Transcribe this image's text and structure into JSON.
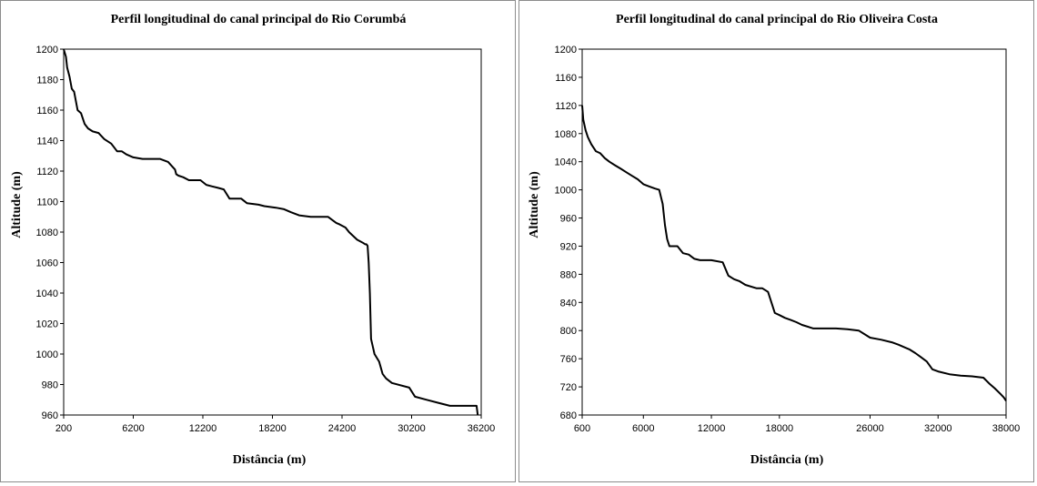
{
  "chart_data": [
    {
      "type": "line",
      "title": "Perfil longitudinal  do canal principal  do Rio Corumbá",
      "xlabel": "Distância (m)",
      "ylabel": "Altitude  (m)",
      "xlim": [
        200,
        36200
      ],
      "ylim": [
        960,
        1200
      ],
      "xticks": [
        200,
        6200,
        12200,
        18200,
        24200,
        30200,
        36200
      ],
      "yticks": [
        960,
        980,
        1000,
        1020,
        1040,
        1060,
        1080,
        1100,
        1120,
        1140,
        1160,
        1180,
        1200
      ],
      "grid": false,
      "x": [
        200,
        400,
        500,
        700,
        900,
        1100,
        1400,
        1700,
        2000,
        2300,
        2700,
        3200,
        3700,
        4300,
        4800,
        5200,
        5600,
        6200,
        7000,
        7800,
        8500,
        9200,
        9800,
        9900,
        10100,
        10500,
        11000,
        12000,
        12500,
        13000,
        13500,
        14000,
        14500,
        15500,
        16000,
        17000,
        17500,
        18500,
        19200,
        19800,
        20500,
        21500,
        22500,
        23000,
        23700,
        24000,
        24500,
        24800,
        25500,
        26000,
        26200,
        26300,
        26400,
        26500,
        26600,
        26700,
        27000,
        27400,
        27700,
        28000,
        28500,
        30000,
        30500,
        31500,
        32500,
        33500,
        35800,
        35900
      ],
      "y": [
        1200,
        1195,
        1188,
        1182,
        1174,
        1172,
        1160,
        1158,
        1151,
        1148,
        1146,
        1145,
        1141,
        1138,
        1133,
        1133,
        1131,
        1129,
        1128,
        1128,
        1128,
        1126,
        1121,
        1118,
        1117,
        1116,
        1114,
        1114,
        1111,
        1110,
        1109,
        1108,
        1102,
        1102,
        1099,
        1098,
        1097,
        1096,
        1095,
        1093,
        1091,
        1090,
        1090,
        1090,
        1086,
        1085,
        1083,
        1080,
        1075,
        1073,
        1072,
        1072,
        1071,
        1060,
        1040,
        1010,
        1000,
        995,
        987,
        984,
        981,
        978,
        972,
        970,
        968,
        966,
        966,
        960
      ]
    },
    {
      "type": "line",
      "title": "Perfil longitudinal  do canal principal  do Rio Oliveira  Costa",
      "xlabel": "Distância  (m)",
      "ylabel": "Altitude  (m)",
      "xlim": [
        600,
        38000
      ],
      "ylim": [
        680,
        1200
      ],
      "xticks": [
        600,
        6000,
        12000,
        18000,
        26000,
        32000,
        38000
      ],
      "yticks": [
        680,
        720,
        760,
        800,
        840,
        880,
        920,
        960,
        1000,
        1040,
        1080,
        1120,
        1160,
        1200
      ],
      "grid": false,
      "x": [
        600,
        700,
        900,
        1100,
        1400,
        1800,
        2200,
        2600,
        3000,
        3500,
        4000,
        4500,
        5000,
        5500,
        6000,
        6500,
        7000,
        7400,
        7700,
        7900,
        8100,
        8300,
        8500,
        9000,
        9500,
        10000,
        10500,
        11000,
        12000,
        13000,
        13500,
        14000,
        14500,
        15000,
        16000,
        16500,
        17000,
        17200,
        17400,
        17600,
        18000,
        18500,
        19000,
        19500,
        20000,
        21000,
        22000,
        23000,
        24000,
        25000,
        25500,
        26000,
        27000,
        28000,
        28500,
        29500,
        30000,
        30500,
        31000,
        31500,
        32000,
        33000,
        34000,
        35000,
        36000,
        36500,
        37000,
        37500,
        37800,
        38000
      ],
      "y": [
        1120,
        1100,
        1085,
        1075,
        1065,
        1055,
        1052,
        1045,
        1040,
        1035,
        1030,
        1025,
        1020,
        1015,
        1008,
        1005,
        1002,
        1000,
        980,
        950,
        930,
        920,
        920,
        920,
        910,
        908,
        902,
        900,
        900,
        897,
        878,
        873,
        870,
        865,
        860,
        860,
        855,
        845,
        835,
        825,
        822,
        818,
        815,
        812,
        808,
        803,
        803,
        803,
        802,
        800,
        795,
        790,
        787,
        783,
        780,
        773,
        768,
        762,
        756,
        745,
        742,
        738,
        736,
        735,
        733,
        725,
        718,
        710,
        705,
        700
      ]
    }
  ]
}
